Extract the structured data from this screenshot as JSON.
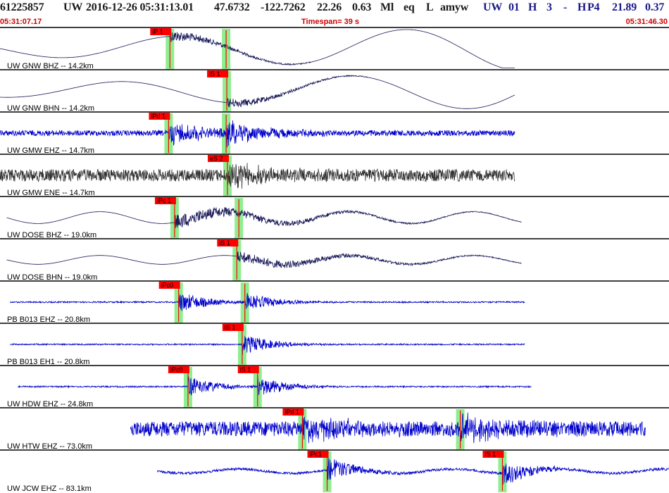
{
  "header": {
    "event_id": "61225857",
    "network": "UW",
    "origin_time": "2016-12-26 05:31:13.01",
    "latitude": "47.6732",
    "longitude": "-122.7262",
    "depth": "22.26",
    "magnitude": "0.63",
    "mag_type": "Ml",
    "event_type": "eq",
    "review": "L",
    "analyst": "amyw",
    "source": "UW",
    "version": "01",
    "quality": "H",
    "count": "3",
    "dash": "-",
    "quality2": "H",
    "phase_count": "P4",
    "value1": "21.89",
    "value2": "0.37"
  },
  "subheader": {
    "start_time": "05:31:07.17",
    "timespan": "Timespan=  39 s",
    "end_time": "05:31:46.30"
  },
  "colors": {
    "header_text": "#1a1a1a",
    "header_accent": "#1a1a8a",
    "time_text": "#cc0000",
    "trace_dark": "#1a1a5a",
    "trace_blue": "#0000cc",
    "trace_gray": "#333333",
    "pick_flag": "#ff0000",
    "pick_band": "#90ee90"
  },
  "traces": [
    {
      "label": "UW GNW BHZ -- 14.2km",
      "color": "dark",
      "kind": "longwave",
      "start": 0.0,
      "end": 0.77,
      "amp": 0.35,
      "picks": [
        {
          "t": "iP 1",
          "x": 0.254
        },
        {
          "t": "",
          "x": 0.338
        }
      ]
    },
    {
      "label": "UW GNW BHN -- 14.2km",
      "color": "dark",
      "kind": "longwave2",
      "start": 0.0,
      "end": 0.77,
      "amp": 0.3,
      "picks": [
        {
          "t": "iS 1",
          "x": 0.339
        }
      ]
    },
    {
      "label": "UW GMW EHZ -- 14.7km",
      "color": "blue",
      "kind": "noise",
      "start": 0.0,
      "end": 0.77,
      "amp": 0.08,
      "picks": [
        {
          "t": "iPd 1",
          "x": 0.252
        },
        {
          "t": "",
          "x": 0.338
        }
      ]
    },
    {
      "label": "UW GMW ENE -- 14.7km",
      "color": "gray",
      "kind": "noise",
      "start": 0.0,
      "end": 0.77,
      "amp": 0.18,
      "picks": [
        {
          "t": "eS 2",
          "x": 0.34
        }
      ]
    },
    {
      "label": "UW DOSE BHZ -- 19.0km",
      "color": "dark",
      "kind": "midwave",
      "start": 0.01,
      "end": 0.78,
      "amp": 0.2,
      "picks": [
        {
          "t": "iPc 1",
          "x": 0.261
        },
        {
          "t": "",
          "x": 0.357
        }
      ]
    },
    {
      "label": "UW DOSE BHN -- 19.0km",
      "color": "dark",
      "kind": "midwave",
      "start": 0.01,
      "end": 0.78,
      "amp": 0.15,
      "picks": [
        {
          "t": "iS 1",
          "x": 0.354
        }
      ]
    },
    {
      "label": "PB B013 EHZ -- 20.8km",
      "color": "blue",
      "kind": "flat",
      "start": 0.015,
      "end": 0.785,
      "amp": 0.03,
      "picks": [
        {
          "t": "iPc0",
          "x": 0.267
        },
        {
          "t": "",
          "x": 0.366
        }
      ]
    },
    {
      "label": "PB B013 EH1 -- 20.8km",
      "color": "blue",
      "kind": "flat",
      "start": 0.015,
      "end": 0.785,
      "amp": 0.03,
      "picks": [
        {
          "t": "iS 1",
          "x": 0.362
        }
      ]
    },
    {
      "label": "UW HDW EHZ -- 24.8km",
      "color": "blue",
      "kind": "flat",
      "start": 0.027,
      "end": 0.795,
      "amp": 0.03,
      "picks": [
        {
          "t": "iPc0",
          "x": 0.281
        },
        {
          "t": "iS 1",
          "x": 0.385
        }
      ]
    },
    {
      "label": "UW HTW EHZ -- 73.0km",
      "color": "blue",
      "kind": "noise",
      "start": 0.195,
      "end": 0.965,
      "amp": 0.22,
      "picks": [
        {
          "t": "iPd 1",
          "x": 0.452
        },
        {
          "t": "",
          "x": 0.688
        }
      ]
    },
    {
      "label": "UW JCW EHZ -- 83.1km",
      "color": "blue",
      "kind": "lownoise",
      "start": 0.235,
      "end": 1.0,
      "amp": 0.1,
      "picks": [
        {
          "t": "iPc1",
          "x": 0.489
        },
        {
          "t": "iS 1",
          "x": 0.751
        }
      ]
    }
  ]
}
